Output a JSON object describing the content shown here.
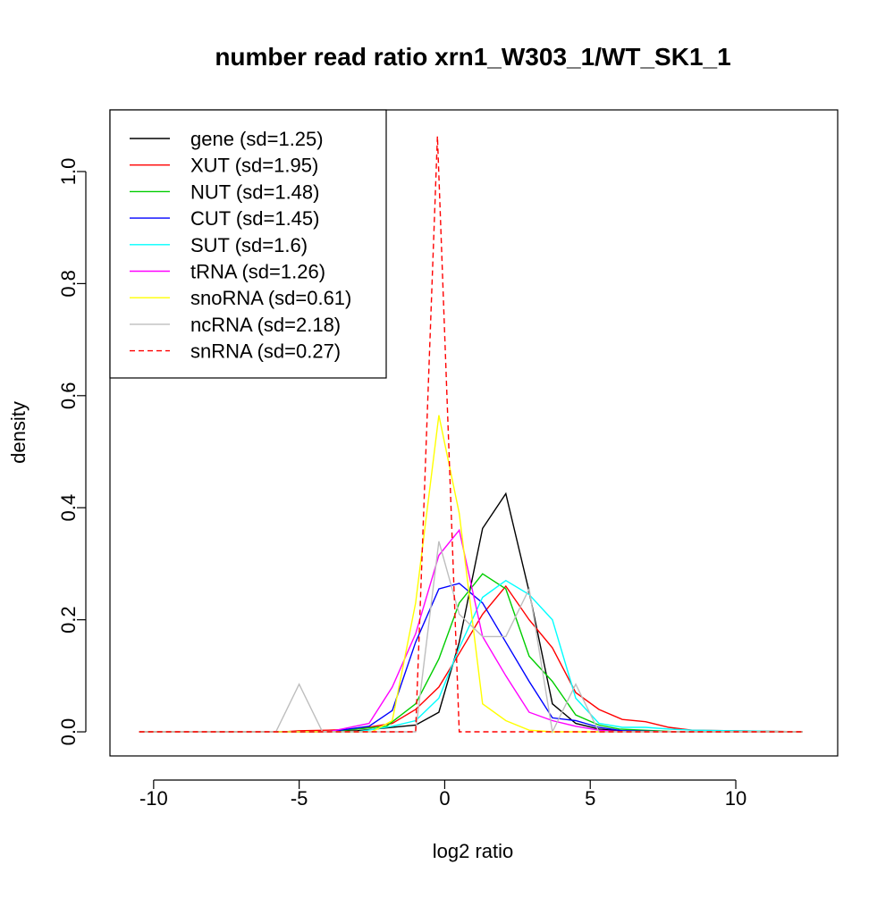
{
  "chart_data": {
    "type": "line",
    "title": "number read ratio xrn1_W303_1/WT_SK1_1",
    "xlabel": "log2 ratio",
    "ylabel": "density",
    "xlim": [
      -11.5,
      13.5
    ],
    "ylim": [
      -0.043,
      1.11
    ],
    "xticks": [
      -10,
      -5,
      0,
      5,
      10
    ],
    "xtick_labels": [
      "-10",
      "-5",
      "0",
      "5",
      "10"
    ],
    "yticks": [
      0.0,
      0.2,
      0.4,
      0.6,
      0.8,
      1.0
    ],
    "ytick_labels": [
      "0.0",
      "0.2",
      "0.4",
      "0.6",
      "0.8",
      "1.0"
    ],
    "grid": false,
    "legend_position": "top-left",
    "series": [
      {
        "name": "gene (sd=1.25)",
        "color": "#000000",
        "dash": false,
        "x": [
          -10.5,
          -6,
          -4,
          -3,
          -1,
          -0.2,
          0.5,
          1.3,
          2.1,
          2.9,
          3.7,
          4.5,
          5.3,
          6,
          8,
          10,
          12.3
        ],
        "y": [
          0,
          0,
          0,
          0.002,
          0.012,
          0.035,
          0.16,
          0.363,
          0.425,
          0.25,
          0.05,
          0.015,
          0.005,
          0.002,
          0,
          0,
          0
        ]
      },
      {
        "name": "XUT (sd=1.95)",
        "color": "#ff0000",
        "dash": false,
        "x": [
          -10.5,
          -5.5,
          -5,
          -4,
          -3,
          -1.8,
          -1,
          -0.2,
          0.5,
          1.3,
          2.1,
          2.9,
          3.7,
          4.5,
          5.3,
          6.1,
          6.9,
          7.7,
          8.5,
          12.3
        ],
        "y": [
          0,
          0,
          0.002,
          0.003,
          0.005,
          0.015,
          0.04,
          0.08,
          0.14,
          0.21,
          0.26,
          0.2,
          0.15,
          0.07,
          0.04,
          0.022,
          0.018,
          0.008,
          0.003,
          0
        ]
      },
      {
        "name": "NUT (sd=1.48)",
        "color": "#00cd00",
        "dash": false,
        "x": [
          -10.5,
          -4,
          -2,
          -1,
          -0.2,
          0.5,
          1.3,
          2.1,
          2.9,
          3.7,
          4.5,
          5.3,
          6,
          8,
          12.3
        ],
        "y": [
          0,
          0,
          0.01,
          0.05,
          0.13,
          0.23,
          0.282,
          0.255,
          0.135,
          0.09,
          0.03,
          0.012,
          0.005,
          0,
          0
        ]
      },
      {
        "name": "CUT (sd=1.45)",
        "color": "#0000ff",
        "dash": false,
        "x": [
          -10.5,
          -4,
          -2.6,
          -1.8,
          -1,
          -0.2,
          0.5,
          1.3,
          2.1,
          2.9,
          3.7,
          4.5,
          5.3,
          6.1,
          8,
          12.3
        ],
        "y": [
          0,
          0,
          0.01,
          0.038,
          0.16,
          0.255,
          0.265,
          0.23,
          0.16,
          0.09,
          0.025,
          0.02,
          0.008,
          0.002,
          0,
          0
        ]
      },
      {
        "name": "SUT (sd=1.6)",
        "color": "#00ffff",
        "dash": false,
        "x": [
          -10.5,
          -3,
          -1.8,
          -1,
          -0.2,
          0.5,
          1.3,
          2.1,
          2.9,
          3.7,
          4.5,
          5.3,
          6.1,
          6.9,
          7.7,
          8.5,
          12.3
        ],
        "y": [
          0,
          0,
          0.01,
          0.02,
          0.06,
          0.15,
          0.24,
          0.27,
          0.245,
          0.2,
          0.06,
          0.015,
          0.008,
          0.008,
          0.005,
          0.003,
          0
        ]
      },
      {
        "name": "tRNA (sd=1.26)",
        "color": "#ff00ff",
        "dash": false,
        "x": [
          -10.5,
          -4,
          -2.6,
          -1.8,
          -1,
          -0.2,
          0.5,
          1.3,
          2.1,
          2.9,
          3.7,
          4.5,
          5.3,
          6.1,
          12.3
        ],
        "y": [
          0,
          0,
          0.015,
          0.08,
          0.175,
          0.315,
          0.36,
          0.17,
          0.1,
          0.035,
          0.02,
          0.01,
          0.003,
          0,
          0
        ]
      },
      {
        "name": "snoRNA (sd=0.61)",
        "color": "#ffff00",
        "dash": false,
        "x": [
          -10.5,
          -2.5,
          -1.8,
          -1,
          -0.2,
          0.5,
          1.3,
          2.1,
          2.9,
          3.7,
          12.3
        ],
        "y": [
          0,
          0,
          0.02,
          0.23,
          0.565,
          0.39,
          0.05,
          0.02,
          0.003,
          0,
          0
        ]
      },
      {
        "name": "ncRNA (sd=2.18)",
        "color": "#bebebe",
        "dash": false,
        "x": [
          -10.5,
          -5.8,
          -5,
          -4.2,
          -3.4,
          -2.6,
          -1.8,
          -1,
          -0.2,
          0.5,
          1.3,
          2.1,
          2.9,
          3.7,
          4.5,
          5.3,
          6.1,
          12.3
        ],
        "y": [
          0,
          0,
          0.085,
          0,
          0,
          0,
          0,
          0,
          0.34,
          0.21,
          0.17,
          0.17,
          0.255,
          0,
          0.085,
          0,
          0,
          0
        ]
      },
      {
        "name": "snRNA (sd=0.27)",
        "color": "#ff0000",
        "dash": true,
        "x": [
          -10.5,
          -1,
          -0.25,
          0.5,
          1.3,
          12.3
        ],
        "y": [
          0,
          0,
          1.063,
          0,
          0,
          0
        ]
      }
    ]
  }
}
